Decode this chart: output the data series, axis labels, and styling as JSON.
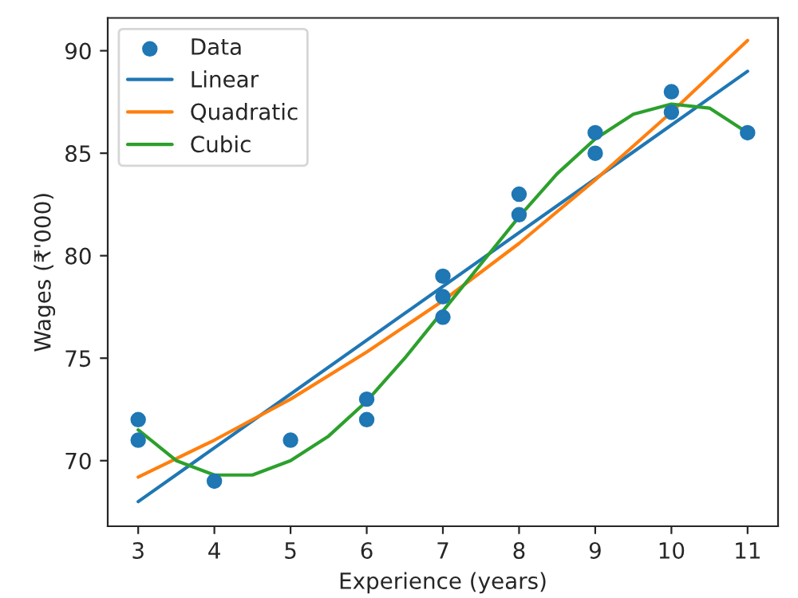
{
  "chart_data": {
    "type": "scatter",
    "xlabel": "Experience (years)",
    "ylabel": "Wages (₹'000)",
    "xlim": [
      2.6,
      11.4
    ],
    "ylim": [
      66.8,
      91.6
    ],
    "xticks": [
      3,
      4,
      5,
      6,
      7,
      8,
      9,
      10,
      11
    ],
    "yticks": [
      70,
      75,
      80,
      85,
      90
    ],
    "legend": "top left",
    "grid": false,
    "series": [
      {
        "name": "Data",
        "marker": "circle",
        "color": "#1f77b4",
        "x": [
          3,
          3,
          4,
          5,
          6,
          6,
          7,
          7,
          7,
          8,
          8,
          9,
          9,
          10,
          10,
          11
        ],
        "values": [
          72,
          71,
          69,
          71,
          73,
          72,
          79,
          78,
          77,
          83,
          82,
          86,
          85,
          88,
          87,
          86
        ]
      },
      {
        "name": "Linear",
        "type": "line",
        "color": "#1f77b4",
        "x": [
          3,
          11
        ],
        "values": [
          68,
          89
        ]
      },
      {
        "name": "Quadratic",
        "type": "line",
        "color": "#ff7f0e",
        "x": [
          3,
          4,
          5,
          6,
          7,
          8,
          9,
          10,
          11
        ],
        "values": [
          69.2,
          71.0,
          73.0,
          75.3,
          77.8,
          80.6,
          83.7,
          87.0,
          90.5
        ]
      },
      {
        "name": "Cubic",
        "type": "line",
        "color": "#2ca02c",
        "x": [
          3,
          3.5,
          4,
          4.5,
          5,
          5.5,
          6,
          6.5,
          7,
          7.5,
          8,
          8.5,
          9,
          9.5,
          10,
          10.5,
          11
        ],
        "values": [
          71.5,
          70.0,
          69.3,
          69.3,
          70.0,
          71.2,
          72.9,
          75.0,
          77.3,
          79.6,
          81.9,
          84.0,
          85.7,
          86.9,
          87.4,
          87.2,
          86.0
        ]
      }
    ]
  }
}
